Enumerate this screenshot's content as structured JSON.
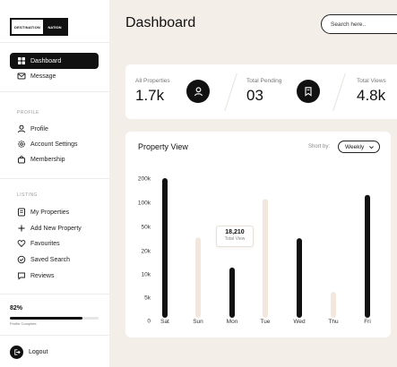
{
  "logo": {
    "part1": "DESTINATION",
    "part2": "NATION"
  },
  "header": {
    "title": "Dashboard",
    "search_placeholder": "Search here.."
  },
  "sidebar": {
    "main": [
      {
        "label": "Dashboard",
        "icon": "grid-icon",
        "active": true
      },
      {
        "label": "Message",
        "icon": "mail-icon",
        "active": false
      }
    ],
    "profile_section": "PROFILE",
    "profile": [
      {
        "label": "Profile",
        "icon": "user-icon"
      },
      {
        "label": "Account Settings",
        "icon": "gear-icon"
      },
      {
        "label": "Membership",
        "icon": "bag-icon"
      }
    ],
    "listing_section": "LISTING",
    "listing": [
      {
        "label": "My Properties",
        "icon": "list-icon"
      },
      {
        "label": "Add New Property",
        "icon": "plus-icon"
      },
      {
        "label": "Favourites",
        "icon": "heart-icon"
      },
      {
        "label": "Saved Search",
        "icon": "check-circle-icon"
      },
      {
        "label": "Reviews",
        "icon": "chat-icon"
      }
    ],
    "progress": {
      "percent_label": "82%",
      "value": 0.82,
      "caption": "Profile Complete"
    },
    "logout": "Logout"
  },
  "stats": [
    {
      "label": "All Properties",
      "value": "1.7k",
      "icon": "user-circle-icon"
    },
    {
      "label": "Total Pending",
      "value": "03",
      "icon": "bookmark-icon"
    },
    {
      "label": "Total Views",
      "value": "4.8k"
    }
  ],
  "chart": {
    "title": "Property View",
    "sort_label": "Short by:",
    "sort_value": "Weekly"
  },
  "tooltip": {
    "value": "18,210",
    "label": "Total View"
  },
  "colors": {
    "dark": "#111111",
    "light_bar": "#f1e7dc",
    "background": "#f3eee8"
  },
  "chart_data": {
    "type": "bar",
    "categories": [
      "Sat",
      "Sun",
      "Mon",
      "Tue",
      "Wed",
      "Thu",
      "Fri"
    ],
    "values": [
      200000,
      115000,
      72000,
      170000,
      114000,
      37000,
      176000
    ],
    "highlighted": [
      true,
      false,
      true,
      false,
      true,
      false,
      true
    ],
    "yticks": [
      "0",
      "5k",
      "10k",
      "20k",
      "50k",
      "100k",
      "200k"
    ],
    "ylim": [
      0,
      200000
    ]
  }
}
